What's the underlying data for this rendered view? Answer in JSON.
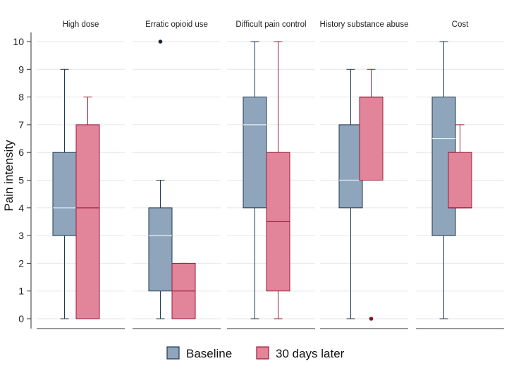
{
  "chart_data": {
    "type": "box",
    "ylabel": "Pain intensity",
    "ylim": [
      0,
      10
    ],
    "yticks": [
      0,
      1,
      2,
      3,
      4,
      5,
      6,
      7,
      8,
      9,
      10
    ],
    "grid": true,
    "legend_placement": "bottom-center",
    "series": [
      {
        "name": "Baseline",
        "color": "#8FA5BB",
        "stroke": "#1F3A52"
      },
      {
        "name": "30 days later",
        "color": "#E2849A",
        "stroke": "#9B1B36"
      }
    ],
    "panels": [
      {
        "title": "High dose",
        "boxes": [
          {
            "series": "Baseline",
            "min": 0,
            "q1": 3,
            "median": 4,
            "q3": 6,
            "max": 9,
            "outliers": []
          },
          {
            "series": "30 days later",
            "min": 0,
            "q1": 0,
            "median": 4,
            "q3": 7,
            "max": 8,
            "outliers": []
          }
        ]
      },
      {
        "title": "Erratic opioid use",
        "boxes": [
          {
            "series": "Baseline",
            "min": 0,
            "q1": 1,
            "median": 3,
            "q3": 4,
            "max": 5,
            "outliers": [
              10
            ]
          },
          {
            "series": "30 days later",
            "min": 0,
            "q1": 0,
            "median": 1,
            "q3": 2,
            "max": 2,
            "outliers": []
          }
        ]
      },
      {
        "title": "Difficult pain control",
        "boxes": [
          {
            "series": "Baseline",
            "min": 0,
            "q1": 4,
            "median": 7,
            "q3": 8,
            "max": 10,
            "outliers": []
          },
          {
            "series": "30 days later",
            "min": 0,
            "q1": 1,
            "median": 3.5,
            "q3": 6,
            "max": 10,
            "outliers": []
          }
        ]
      },
      {
        "title": "History substance abuse",
        "boxes": [
          {
            "series": "Baseline",
            "min": 0,
            "q1": 4,
            "median": 5,
            "q3": 7,
            "max": 9,
            "outliers": []
          },
          {
            "series": "30 days later",
            "min": 5,
            "q1": 5,
            "median": 8,
            "q3": 8,
            "max": 9,
            "outliers": [
              0
            ]
          }
        ]
      },
      {
        "title": "Cost",
        "boxes": [
          {
            "series": "Baseline",
            "min": 0,
            "q1": 3,
            "median": 6.5,
            "q3": 8,
            "max": 10,
            "outliers": []
          },
          {
            "series": "30 days later",
            "min": 4,
            "q1": 4,
            "median": 4,
            "q3": 6,
            "max": 7,
            "outliers": []
          }
        ]
      }
    ]
  }
}
